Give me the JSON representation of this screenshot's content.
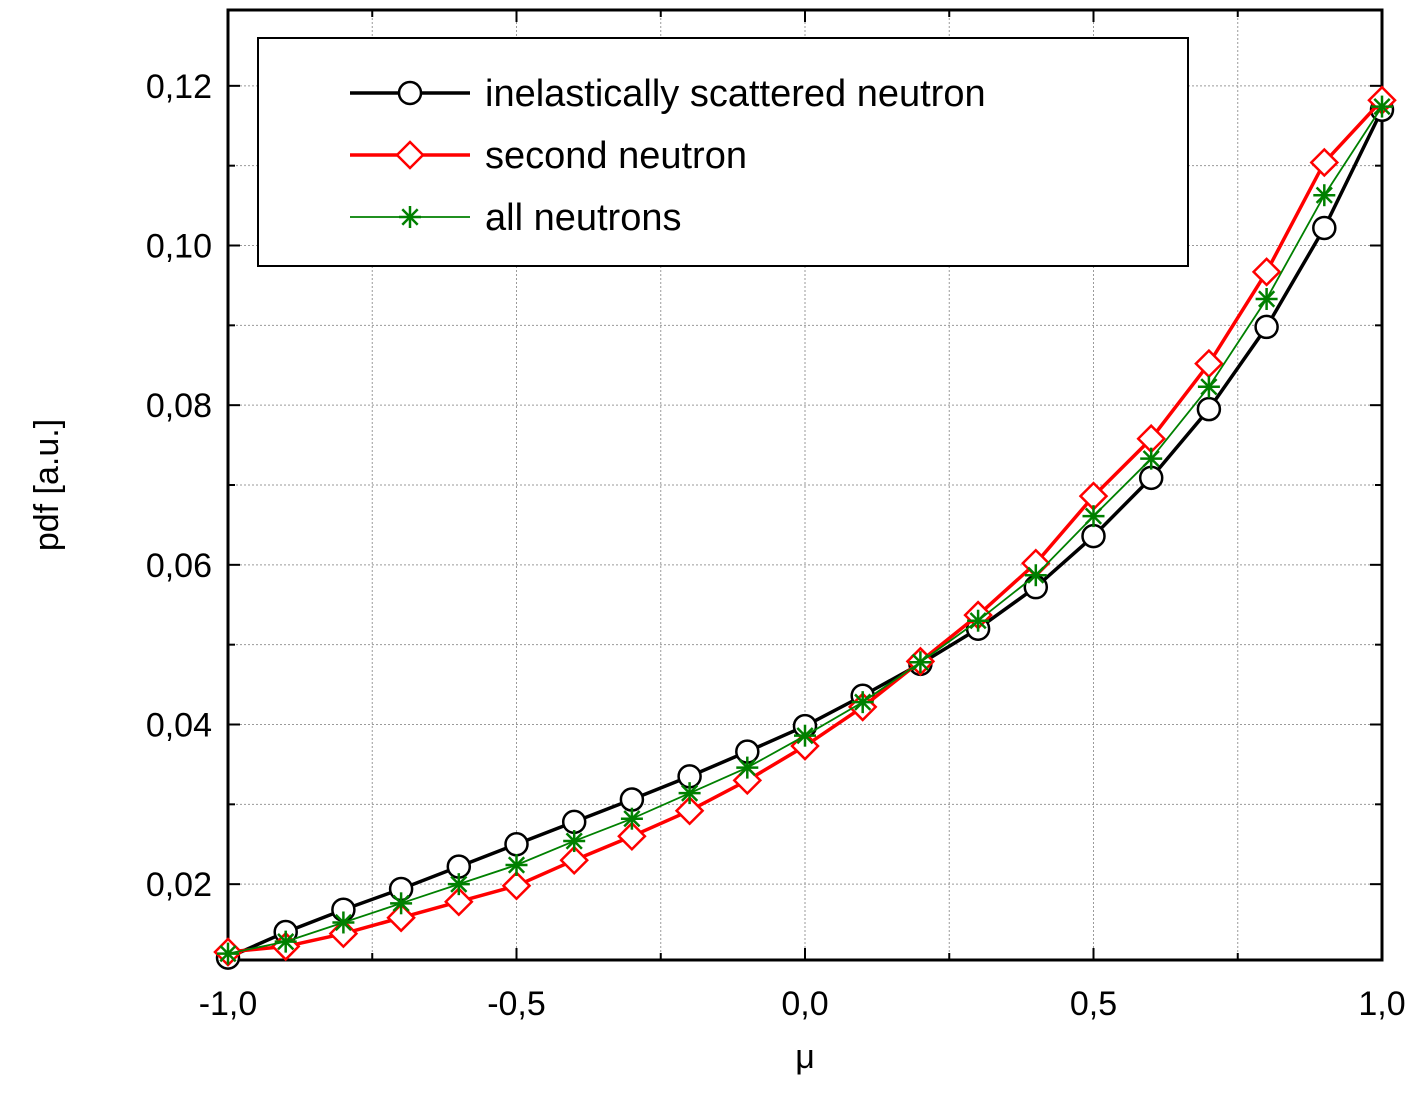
{
  "chart_data": {
    "type": "line",
    "xlabel": "μ",
    "ylabel": "pdf [a.u.]",
    "xlim": [
      -1.0,
      1.0
    ],
    "ylim": [
      0.0105,
      0.1295
    ],
    "grid": true,
    "legend_position": "top-left",
    "x_ticks": [
      -1.0,
      -0.5,
      0.0,
      0.5,
      1.0
    ],
    "x_tick_labels": [
      "-1,0",
      "-0,5",
      "0,0",
      "0,5",
      "1,0"
    ],
    "y_ticks": [
      0.02,
      0.04,
      0.06,
      0.08,
      0.1,
      0.12
    ],
    "y_tick_labels": [
      "0,02",
      "0,04",
      "0,06",
      "0,08",
      "0,10",
      "0,12"
    ],
    "x": [
      -1.0,
      -0.9,
      -0.8,
      -0.7,
      -0.6,
      -0.5,
      -0.4,
      -0.3,
      -0.2,
      -0.1,
      0.0,
      0.1,
      0.2,
      0.3,
      0.4,
      0.5,
      0.6,
      0.7,
      0.8,
      0.9,
      1.0
    ],
    "series": [
      {
        "name": "inelastically scattered neutron",
        "color": "#000000",
        "marker": "circle",
        "values": [
          0.0108,
          0.014,
          0.0168,
          0.0194,
          0.0222,
          0.025,
          0.0278,
          0.0306,
          0.0335,
          0.0366,
          0.0398,
          0.0436,
          0.0476,
          0.052,
          0.0572,
          0.0636,
          0.0709,
          0.0795,
          0.0898,
          0.1022,
          0.117
        ]
      },
      {
        "name": "second neutron",
        "color": "#ff0000",
        "marker": "diamond",
        "values": [
          0.0115,
          0.0122,
          0.0138,
          0.0158,
          0.0178,
          0.0198,
          0.023,
          0.026,
          0.0292,
          0.033,
          0.0373,
          0.0422,
          0.0479,
          0.0537,
          0.0602,
          0.0686,
          0.0758,
          0.0852,
          0.0967,
          0.1104,
          0.1182
        ]
      },
      {
        "name": "all neutrons",
        "color": "#008000",
        "marker": "asterisk",
        "values": [
          0.0113,
          0.0128,
          0.0152,
          0.0176,
          0.02,
          0.0224,
          0.0254,
          0.0282,
          0.0314,
          0.0346,
          0.0386,
          0.0428,
          0.0478,
          0.053,
          0.0587,
          0.0661,
          0.0733,
          0.0823,
          0.0933,
          0.1063,
          0.1174
        ]
      }
    ]
  }
}
